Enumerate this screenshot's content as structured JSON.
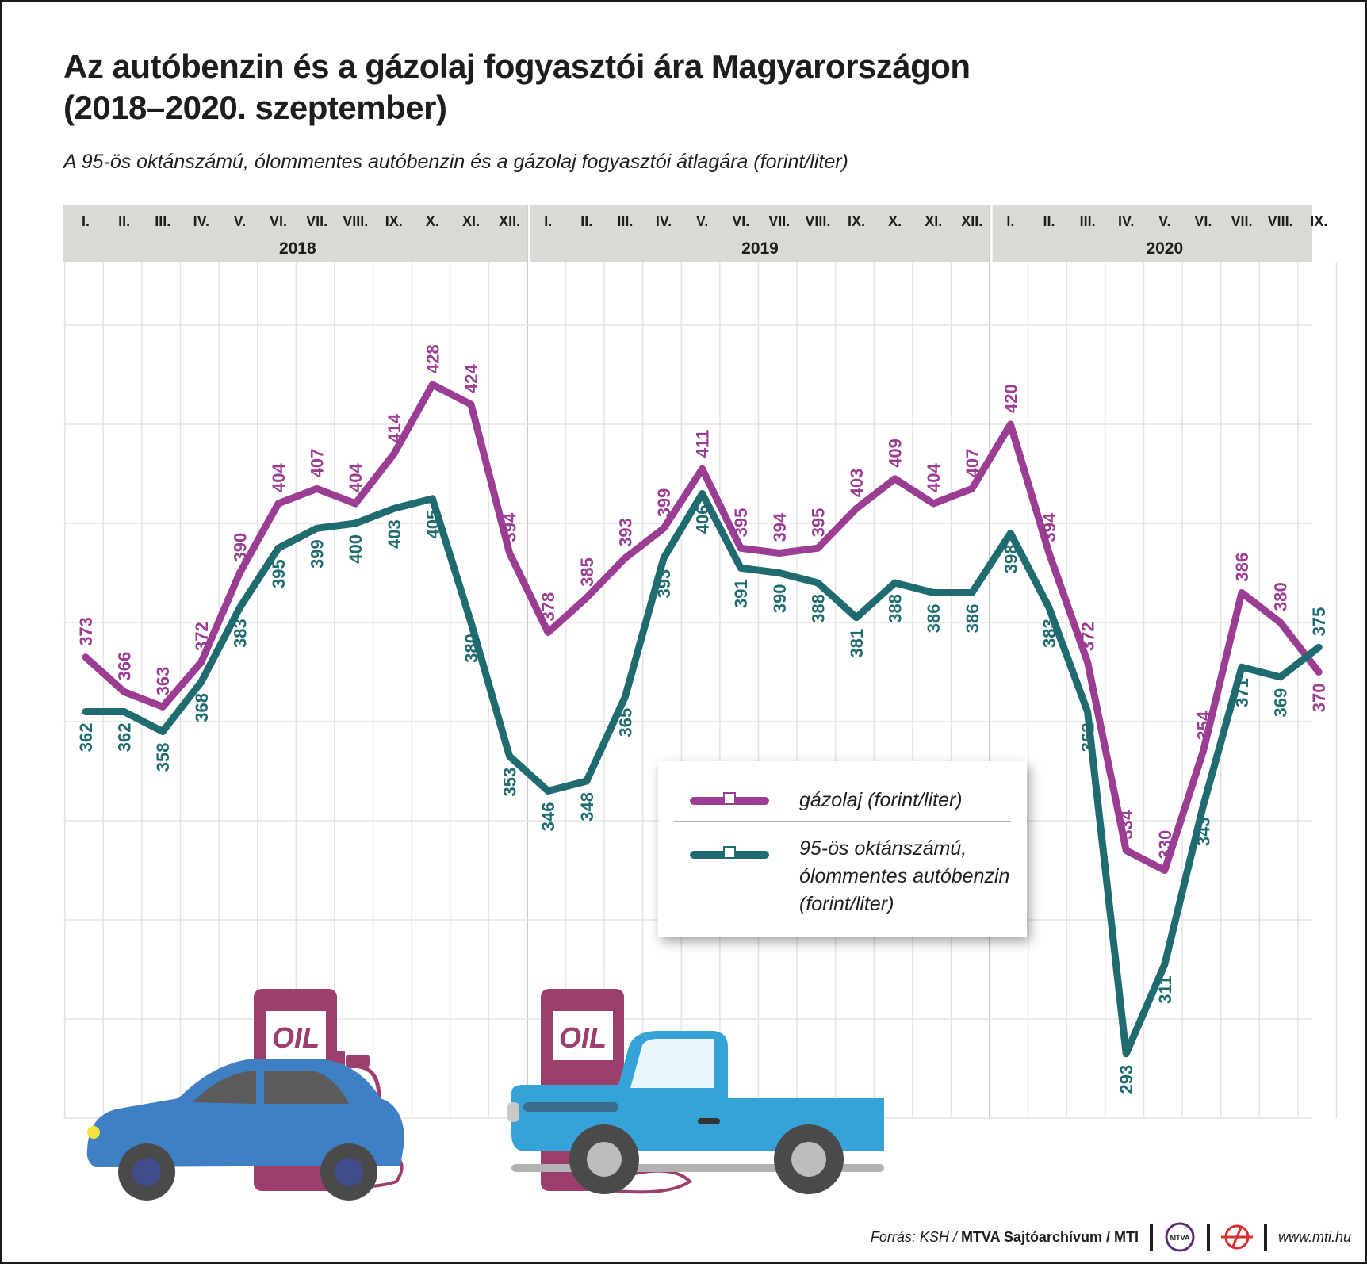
{
  "title_lines": [
    "Az autóbenzin és a gázolaj fogyasztói ára Magyarországon",
    "(2018–2020. szeptember)"
  ],
  "subtitle": "A 95-ös oktánszámú, ólommentes autóbenzin és a gázolaj fogyasztói átlagára (forint/liter)",
  "chart_data": {
    "type": "line",
    "years": [
      {
        "label": "2018",
        "months": [
          "I.",
          "II.",
          "III.",
          "IV.",
          "V.",
          "VI.",
          "VII.",
          "VIII.",
          "IX.",
          "X.",
          "XI.",
          "XII."
        ]
      },
      {
        "label": "2019",
        "months": [
          "I.",
          "II.",
          "III.",
          "IV.",
          "V.",
          "VI.",
          "VII.",
          "VIII.",
          "IX.",
          "X.",
          "XI.",
          "XII."
        ]
      },
      {
        "label": "2020",
        "months": [
          "I.",
          "II.",
          "III.",
          "IV.",
          "V.",
          "VI.",
          "VII.",
          "VIII.",
          "IX."
        ]
      }
    ],
    "series": [
      {
        "name": "gázolaj (forint/liter)",
        "color": "#9b3d92",
        "values": [
          373,
          366,
          363,
          372,
          390,
          404,
          407,
          404,
          414,
          428,
          424,
          394,
          378,
          385,
          393,
          399,
          411,
          395,
          394,
          395,
          403,
          409,
          404,
          407,
          420,
          394,
          372,
          334,
          330,
          354,
          386,
          380,
          370
        ]
      },
      {
        "name": "95-ös oktánszámú, ólommentes autóbenzin (forint/liter)",
        "color": "#1f6b70",
        "values": [
          362,
          362,
          358,
          368,
          383,
          395,
          399,
          400,
          403,
          405,
          380,
          353,
          346,
          348,
          365,
          393,
          406,
          391,
          390,
          388,
          381,
          388,
          386,
          386,
          398,
          383,
          362,
          293,
          311,
          343,
          371,
          369,
          375
        ]
      }
    ],
    "ylim": [
      280,
      440
    ],
    "grid": true
  },
  "legend": {
    "items": [
      {
        "lines": [
          "gázolaj (forint/liter)"
        ],
        "color": "#9b3d92"
      },
      {
        "lines": [
          "95-ös oktánszámú,",
          "ólommentes autóbenzin",
          "(forint/liter)"
        ],
        "color": "#1f6b70"
      }
    ]
  },
  "illustration": {
    "pump_label": "OIL"
  },
  "footer": {
    "source_prefix": "Forrás: KSH / ",
    "source_bold": "MTVA Sajtóarchívum / MTI",
    "logo1": "MTVA",
    "url": "www.mti.hu"
  }
}
